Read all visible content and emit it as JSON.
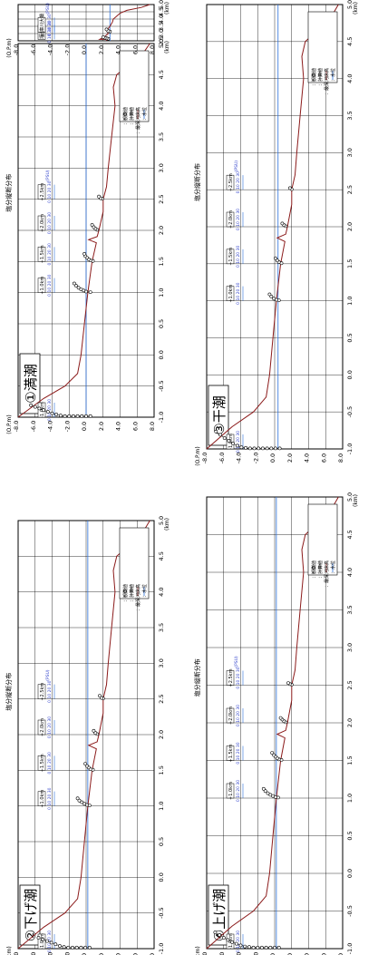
{
  "chart_data": [
    {
      "type": "line",
      "panel_label": "①満潮",
      "title": "塩分縦断分布",
      "y_axis_label": "(O.P.m)",
      "x_axis_label": "(km)",
      "x_ticks": [
        "-1.0",
        "-0.5",
        "0.0",
        "0.5",
        "1.0",
        "1.5",
        "2.0",
        "2.5",
        "3.0",
        "3.5",
        "4.0",
        "4.5",
        "5.0"
      ],
      "y_ticks": [
        "8.0",
        "6.0",
        "4.0",
        "2.0",
        "0.0",
        "-2.0",
        "-4.0",
        "-6.0",
        "-8.0"
      ],
      "xlim": [
        -1.0,
        5.0
      ],
      "ylim": [
        -8.0,
        8.0
      ],
      "station_labels": [
        "-1.0km",
        "+1.0km",
        "+1.5km",
        "+2.0km",
        "+2.5km"
      ],
      "salinity_scale_label": "0 10 20 30",
      "psu_label": "(PSU)",
      "legend": [
        "：観測値",
        "：計算値",
        "：最深河床高",
        "：水位"
      ],
      "water_level": 0.0,
      "riverbed": {
        "x": [
          -1.0,
          -0.7,
          -0.5,
          -0.3,
          0.0,
          0.5,
          1.0,
          1.5,
          1.8,
          1.85,
          1.9,
          2.0,
          2.3,
          2.5,
          2.7,
          3.0,
          3.5,
          4.0,
          4.3,
          4.5,
          4.8,
          5.0
        ],
        "y": [
          -8.0,
          -5.0,
          -2.5,
          -1.0,
          -0.6,
          -0.2,
          0.2,
          0.7,
          1.2,
          0.3,
          1.3,
          1.5,
          2.0,
          2.0,
          2.4,
          2.6,
          3.0,
          3.4,
          3.2,
          3.6,
          6.5,
          7.5
        ]
      },
      "observations": [
        {
          "station": -1.0,
          "salinity": [
            0.2,
            0.2,
            0.2,
            0.2,
            0.2,
            0.2,
            0.2,
            0.3,
            0.5,
            0.7,
            1.0,
            1.3,
            1.6,
            1.9,
            2.2
          ],
          "depth": [
            0.5,
            0.0,
            -0.5,
            -1.0,
            -1.5,
            -2.0,
            -2.5,
            -3.0,
            -3.5,
            -4.0,
            -4.5,
            -5.0,
            -5.5,
            -6.0,
            -6.5
          ]
        },
        {
          "station": 1.0,
          "salinity": [
            0.1,
            0.2,
            0.4,
            0.6,
            0.9,
            1.3,
            1.7
          ],
          "depth": [
            0.5,
            0.0,
            -0.3,
            -0.6,
            -0.9,
            -1.2,
            -1.4
          ]
        },
        {
          "station": 1.5,
          "salinity": [
            0.1,
            0.2,
            0.4,
            0.7,
            1.0,
            1.4
          ],
          "depth": [
            0.8,
            0.5,
            0.3,
            0.1,
            -0.1,
            -0.2
          ]
        },
        {
          "station": 2.0,
          "salinity": [
            0.1,
            0.3,
            0.6,
            1.0
          ],
          "depth": [
            1.3,
            1.1,
            0.9,
            0.7
          ]
        },
        {
          "station": 2.5,
          "salinity": [
            0.1,
            0.2,
            0.5
          ],
          "depth": [
            1.9,
            1.7,
            1.5
          ]
        }
      ]
    },
    {
      "type": "line",
      "panel_label": "",
      "title": "",
      "y_axis_label": "(O.P.m)",
      "x_axis_label": "(km)",
      "x_ticks": [
        "2.5",
        "3.0",
        "3.5",
        "4.0",
        "4.5",
        "5.0"
      ],
      "y_ticks": [
        "8.0",
        "6.0",
        "4.0",
        "2.0",
        "0.0",
        "-2.0",
        "-4.0",
        "-6.0",
        "-8.0"
      ],
      "xlim": [
        2.5,
        5.0
      ],
      "ylim": [
        -8.0,
        8.0
      ],
      "station_labels": [
        "堰上流",
        "武庫川大橋",
        "JR鉄床止下流"
      ],
      "salinity_scale_label": "0 10 20 30",
      "psu_label": "(PSU)",
      "legend": [
        "：観測値",
        "：計算値",
        "：最深河床高",
        "：水位"
      ],
      "water_level": 2.8,
      "riverbed": {
        "x": [
          2.5,
          2.6,
          2.6,
          2.8,
          3.0,
          3.2,
          3.5,
          3.8,
          4.0,
          4.2,
          4.4,
          4.6,
          4.8,
          5.0
        ],
        "y": [
          2.4,
          2.4,
          1.6,
          2.2,
          2.6,
          2.4,
          2.8,
          3.1,
          3.2,
          3.6,
          4.0,
          4.8,
          6.5,
          7.5
        ]
      },
      "observations": [
        {
          "station": 2.6,
          "salinity": [
            0.1,
            0.2,
            0.3,
            0.4
          ],
          "depth": [
            2.6,
            2.4,
            2.2,
            2.0
          ]
        },
        {
          "station": 3.1,
          "salinity": [
            0.1,
            0.2,
            0.5
          ],
          "depth": [
            2.8,
            2.6,
            2.4
          ]
        }
      ]
    },
    {
      "type": "line",
      "panel_label": "②下げ潮",
      "title": "塩分縦断分布",
      "y_axis_label": "(O.P.m)",
      "x_axis_label": "(km)",
      "x_ticks": [
        "-1.0",
        "-0.5",
        "0.0",
        "0.5",
        "1.0",
        "1.5",
        "2.0",
        "2.5",
        "3.0",
        "3.5",
        "4.0",
        "4.5",
        "5.0"
      ],
      "y_ticks": [
        "8.0",
        "6.0",
        "4.0",
        "2.0",
        "0.0",
        "-2.0",
        "-4.0",
        "-6.0",
        "-8.0"
      ],
      "xlim": [
        -1.0,
        5.0
      ],
      "ylim": [
        -8.0,
        8.0
      ],
      "station_labels": [
        "-1.0km",
        "+1.0km",
        "+1.5km",
        "+2.0km",
        "+2.5km"
      ],
      "salinity_scale_label": "0 10 20 30",
      "psu_label": "(PSU)",
      "legend": [
        "：観測値",
        "：計算値",
        "：最深河床高",
        "：水位"
      ],
      "water_level": 0.2,
      "riverbed": {
        "x": [
          -1.0,
          -0.7,
          -0.5,
          -0.3,
          0.0,
          0.5,
          1.0,
          1.5,
          1.8,
          1.85,
          1.9,
          2.0,
          2.3,
          2.5,
          2.7,
          3.0,
          3.5,
          4.0,
          4.3,
          4.5,
          4.8,
          5.0
        ],
        "y": [
          -8.0,
          -5.0,
          -2.5,
          -1.0,
          -0.6,
          -0.2,
          0.2,
          0.7,
          1.2,
          0.3,
          1.3,
          1.5,
          2.0,
          2.0,
          2.4,
          2.6,
          3.0,
          3.4,
          3.2,
          3.6,
          6.5,
          7.5
        ]
      },
      "observations": [
        {
          "station": -1.0,
          "salinity": [
            0.2,
            0.2,
            0.2,
            0.2,
            0.2,
            0.2,
            0.3,
            0.5,
            0.8,
            1.1,
            1.4,
            1.7,
            2.0
          ],
          "depth": [
            0.4,
            -0.1,
            -0.6,
            -1.1,
            -1.6,
            -2.1,
            -2.6,
            -3.1,
            -3.6,
            -4.1,
            -4.6,
            -5.1,
            -5.6
          ]
        },
        {
          "station": 1.0,
          "salinity": [
            0.1,
            0.2,
            0.4,
            0.7,
            1.0,
            1.4
          ],
          "depth": [
            0.4,
            0.1,
            -0.2,
            -0.5,
            -0.8,
            -1.0
          ]
        },
        {
          "station": 1.5,
          "salinity": [
            0.1,
            0.2,
            0.5,
            0.8,
            1.2
          ],
          "depth": [
            0.8,
            0.5,
            0.3,
            0.1,
            -0.1
          ]
        },
        {
          "station": 2.0,
          "salinity": [
            0.1,
            0.3,
            0.7
          ],
          "depth": [
            1.3,
            1.1,
            0.9
          ]
        },
        {
          "station": 2.5,
          "salinity": [
            0.1,
            0.2,
            0.6
          ],
          "depth": [
            2.0,
            1.8,
            1.6
          ]
        }
      ]
    },
    {
      "type": "line",
      "panel_label": "③干潮",
      "title": "塩分縦断分布",
      "y_axis_label": "(O.P.m)",
      "x_axis_label": "(km)",
      "x_ticks": [
        "-1.0",
        "-0.5",
        "0.0",
        "0.5",
        "1.0",
        "1.5",
        "2.0",
        "2.5",
        "3.0",
        "3.5",
        "4.0",
        "4.5",
        "5.0"
      ],
      "y_ticks": [
        "8.0",
        "6.0",
        "4.0",
        "2.0",
        "0.0",
        "-2.0",
        "-4.0",
        "-6.0",
        "-8.0"
      ],
      "xlim": [
        -1.0,
        5.0
      ],
      "ylim": [
        -8.0,
        8.0
      ],
      "station_labels": [
        "-1.0km",
        "+1.0km",
        "+1.5km",
        "+2.0km",
        "+2.5km"
      ],
      "salinity_scale_label": "0 10 20 30",
      "psu_label": "(PSU)",
      "legend": [
        "：観測値",
        "：計算値",
        "：最深河床高",
        "：水位"
      ],
      "water_level": 0.4,
      "riverbed": {
        "x": [
          -1.0,
          -0.7,
          -0.5,
          -0.3,
          0.0,
          0.5,
          1.0,
          1.5,
          1.8,
          1.85,
          1.9,
          2.0,
          2.3,
          2.5,
          2.7,
          3.0,
          3.5,
          4.0,
          4.3,
          4.5,
          4.8,
          5.0
        ],
        "y": [
          -8.0,
          -5.0,
          -2.5,
          -1.0,
          -0.6,
          -0.2,
          0.2,
          0.7,
          1.2,
          0.3,
          1.3,
          1.5,
          2.0,
          2.0,
          2.4,
          2.6,
          3.0,
          3.4,
          3.2,
          3.6,
          6.5,
          7.5
        ]
      },
      "observations": [
        {
          "station": -1.0,
          "salinity": [
            0.1,
            0.1,
            0.1,
            0.1,
            0.1,
            0.1,
            0.1,
            0.1,
            0.2,
            0.3,
            0.6,
            1.0,
            1.5,
            2.0,
            2.6,
            3.2
          ],
          "depth": [
            0.6,
            0.1,
            -0.4,
            -0.9,
            -1.4,
            -1.9,
            -2.4,
            -2.9,
            -3.4,
            -3.9,
            -4.4,
            -4.9,
            -5.4,
            -5.9,
            -6.4,
            -6.9
          ]
        },
        {
          "station": 1.0,
          "salinity": [
            0.1,
            0.2,
            0.4,
            0.8,
            1.2
          ],
          "depth": [
            0.5,
            0.2,
            -0.1,
            -0.4,
            -0.6
          ]
        },
        {
          "station": 1.5,
          "salinity": [
            0.1,
            0.3,
            0.6,
            1.0
          ],
          "depth": [
            0.8,
            0.5,
            0.3,
            0.1
          ]
        },
        {
          "station": 2.0,
          "salinity": [
            0.1,
            0.3,
            0.6
          ],
          "depth": [
            1.3,
            1.1,
            0.9
          ]
        },
        {
          "station": 2.5,
          "salinity": [
            0.1,
            0.3
          ],
          "depth": [
            2.0,
            1.8
          ]
        }
      ]
    },
    {
      "type": "line",
      "panel_label": "④上げ潮",
      "title": "塩分縦断分布",
      "y_axis_label": "(O.P.m)",
      "x_axis_label": "(km)",
      "x_ticks": [
        "-1.0",
        "-0.5",
        "0.0",
        "0.5",
        "1.0",
        "1.5",
        "2.0",
        "2.5",
        "3.0",
        "3.5",
        "4.0",
        "4.5",
        "5.0"
      ],
      "y_ticks": [
        "8.0",
        "6.0",
        "4.0",
        "2.0",
        "0.0",
        "-2.0",
        "-4.0",
        "-6.0",
        "-8.0"
      ],
      "xlim": [
        -1.0,
        5.0
      ],
      "ylim": [
        -8.0,
        8.0
      ],
      "station_labels": [
        "-1.0km",
        "+1.0km",
        "+1.5km",
        "+2.0km",
        "+2.5km"
      ],
      "salinity_scale_label": "0 10 20 30",
      "psu_label": "(PSU)",
      "legend": [
        "：観測値",
        "：計算値",
        "：最深河床高",
        "：水位"
      ],
      "water_level": 0.2,
      "riverbed": {
        "x": [
          -1.0,
          -0.7,
          -0.5,
          -0.3,
          0.0,
          0.5,
          1.0,
          1.5,
          1.8,
          1.85,
          1.9,
          2.0,
          2.3,
          2.5,
          2.7,
          3.0,
          3.5,
          4.0,
          4.3,
          4.5,
          4.8,
          5.0
        ],
        "y": [
          -8.0,
          -5.0,
          -2.5,
          -1.0,
          -0.6,
          -0.2,
          0.2,
          0.7,
          1.2,
          0.3,
          1.3,
          1.5,
          2.0,
          2.0,
          2.4,
          2.6,
          3.0,
          3.4,
          3.2,
          3.6,
          6.5,
          7.5
        ]
      },
      "observations": [
        {
          "station": -1.0,
          "salinity": [
            0.2,
            0.2,
            0.2,
            0.2,
            0.2,
            0.2,
            0.2,
            0.3,
            0.4,
            0.6,
            0.9,
            1.2,
            1.6,
            2.0,
            2.5,
            3.0
          ],
          "depth": [
            0.5,
            0.0,
            -0.5,
            -1.0,
            -1.5,
            -2.0,
            -2.5,
            -3.0,
            -3.5,
            -4.0,
            -4.5,
            -5.0,
            -5.5,
            -6.0,
            -6.5,
            -7.0
          ]
        },
        {
          "station": 1.0,
          "salinity": [
            0.1,
            0.2,
            0.4,
            0.6,
            0.9,
            1.3,
            1.7
          ],
          "depth": [
            0.4,
            0.1,
            -0.2,
            -0.5,
            -0.8,
            -1.1,
            -1.3
          ]
        },
        {
          "station": 1.5,
          "salinity": [
            0.1,
            0.2,
            0.4,
            0.7,
            1.0,
            1.4
          ],
          "depth": [
            0.8,
            0.5,
            0.3,
            0.1,
            -0.1,
            -0.3
          ]
        },
        {
          "station": 2.0,
          "salinity": [
            0.1,
            0.3,
            0.6,
            0.9
          ],
          "depth": [
            1.3,
            1.1,
            0.9,
            0.7
          ]
        },
        {
          "station": 2.5,
          "salinity": [
            0.1,
            0.2,
            0.4
          ],
          "depth": [
            2.0,
            1.8,
            1.6
          ]
        }
      ]
    }
  ],
  "colors": {
    "riverbed": "#8b1a1a",
    "computed": "#222222",
    "water_level": "#2a6fdb",
    "observed": "#000000",
    "grid": "#000000",
    "axis_label_blue": "#3344cc"
  }
}
